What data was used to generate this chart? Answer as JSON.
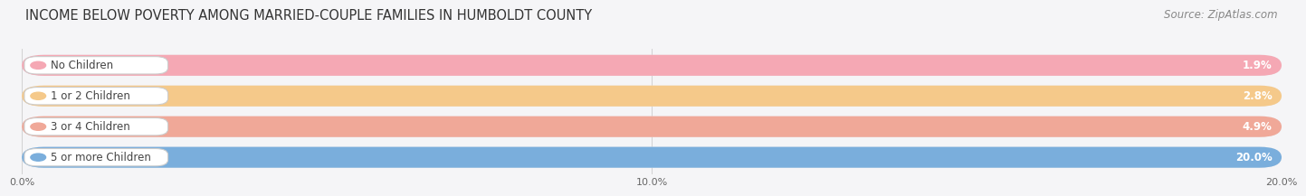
{
  "title": "INCOME BELOW POVERTY AMONG MARRIED-COUPLE FAMILIES IN HUMBOLDT COUNTY",
  "source": "Source: ZipAtlas.com",
  "categories": [
    "No Children",
    "1 or 2 Children",
    "3 or 4 Children",
    "5 or more Children"
  ],
  "values": [
    1.9,
    2.8,
    4.9,
    20.0
  ],
  "bar_colors": [
    "#f5a8b4",
    "#f5c98a",
    "#f0a898",
    "#7aaedc"
  ],
  "bar_bg_color": "#e8e8ec",
  "label_box_color": "#ffffff",
  "label_text_color": "#444444",
  "value_color_inside": "#ffffff",
  "value_color_outside": "#666666",
  "xlim": [
    0,
    20.0
  ],
  "xticks": [
    0.0,
    10.0,
    20.0
  ],
  "xtick_labels": [
    "0.0%",
    "10.0%",
    "20.0%"
  ],
  "background_color": "#f5f5f7",
  "title_fontsize": 10.5,
  "source_fontsize": 8.5,
  "label_fontsize": 8.5,
  "value_fontsize": 8.5
}
